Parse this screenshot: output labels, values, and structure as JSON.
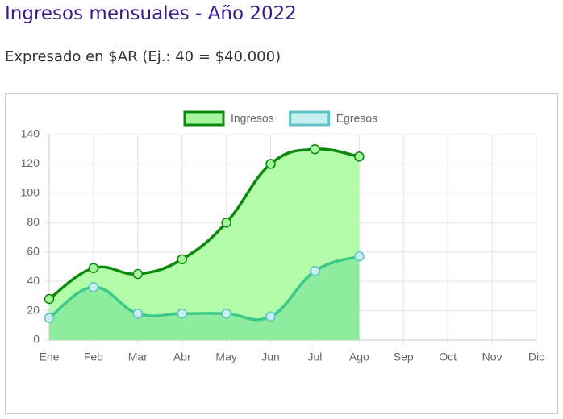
{
  "header": {
    "title": "Ingresos mensuales - Año 2022",
    "subtitle": "Expresado en $AR (Ej.: 40 = $40.000)"
  },
  "chart_data": {
    "type": "line",
    "area": true,
    "smooth": true,
    "grid": true,
    "legend": "top",
    "categories": [
      "Ene",
      "Feb",
      "Mar",
      "Abr",
      "May",
      "Jun",
      "Jul",
      "Ago",
      "Sep",
      "Oct",
      "Nov",
      "Dic"
    ],
    "series": [
      {
        "name": "Ingresos",
        "color": "#0b8a0b",
        "fill_color": "#b3fcaa",
        "point_color": "#a8f5a0",
        "values": [
          28,
          49,
          45,
          55,
          80,
          120,
          130,
          125,
          null,
          null,
          null,
          null
        ]
      },
      {
        "name": "Egresos",
        "color": "#3cc98a",
        "fill_color": "#5fd98f",
        "point_color": "#c9eeee",
        "point_border": "#5cc4c4",
        "values": [
          15,
          36,
          18,
          18,
          18,
          16,
          47,
          57,
          null,
          null,
          null,
          null
        ]
      }
    ],
    "ylim": [
      0,
      140
    ],
    "yticks": [
      0,
      20,
      40,
      60,
      80,
      100,
      120,
      140
    ]
  }
}
